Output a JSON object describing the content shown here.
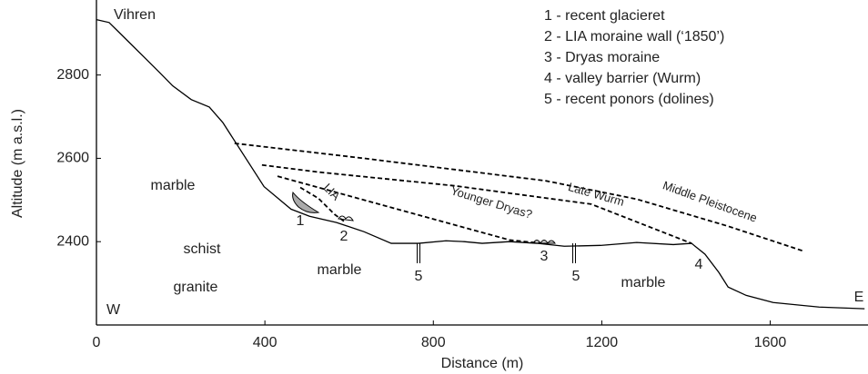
{
  "chart_data": {
    "type": "line",
    "xlabel": "Distance (m)",
    "ylabel": "Altitude (m a.s.l.)",
    "xlim": [
      0,
      1830
    ],
    "ylim": [
      2200,
      2980
    ],
    "xticks": [
      0,
      400,
      800,
      1200,
      1600
    ],
    "yticks": [
      2400,
      2600,
      2800
    ],
    "series": [
      {
        "color": "#000000",
        "dash": false,
        "x": [
          0,
          30,
          73,
          117,
          149,
          181,
          225,
          268,
          300,
          398,
          462,
          506,
          570,
          635,
          700,
          765,
          830,
          873,
          916,
          981,
          1046,
          1111,
          1197,
          1283,
          1370,
          1413,
          1445,
          1478,
          1500,
          1543,
          1607,
          1716,
          1824
        ],
        "values": [
          2933,
          2926,
          2883,
          2839,
          2807,
          2774,
          2741,
          2723,
          2686,
          2532,
          2478,
          2461,
          2446,
          2424,
          2396,
          2396,
          2402,
          2400,
          2396,
          2400,
          2396,
          2389,
          2391,
          2398,
          2393,
          2396,
          2370,
          2326,
          2291,
          2271,
          2254,
          2243,
          2239
        ]
      },
      {
        "name": "Middle Pleistocene",
        "color": "#000000",
        "dash": true,
        "x": [
          328,
          635,
          1067,
          1283,
          1500,
          1677
        ],
        "values": [
          2636,
          2600,
          2546,
          2502,
          2437,
          2378
        ]
      },
      {
        "name": "Late Wurm",
        "color": "#000000",
        "dash": true,
        "x": [
          393,
          527,
          851,
          1175,
          1413
        ],
        "values": [
          2584,
          2567,
          2534,
          2490,
          2396
        ]
      },
      {
        "name": "Younger Dryas?",
        "color": "#000000",
        "dash": true,
        "x": [
          430,
          549,
          743,
          981,
          1057
        ],
        "values": [
          2557,
          2524,
          2470,
          2404,
          2396
        ]
      },
      {
        "name": "LIA",
        "color": "#000000",
        "dash": true,
        "x": [
          484,
          527,
          566,
          592
        ],
        "values": [
          2530,
          2504,
          2465,
          2446
        ]
      }
    ],
    "annotations": [
      "Vihren",
      "W",
      "E",
      "marble",
      "schist",
      "granite",
      "marble",
      "marble"
    ],
    "markers": [
      "1",
      "2",
      "3",
      "4",
      "5",
      "5"
    ],
    "notes": [
      "1 - recent glacieret",
      "2 - LIA moraine wall (‘1850’)",
      "3 - Dryas moraine",
      "4 - valley barrier (Wurm)",
      "5 - recent ponors (dolines)"
    ]
  }
}
